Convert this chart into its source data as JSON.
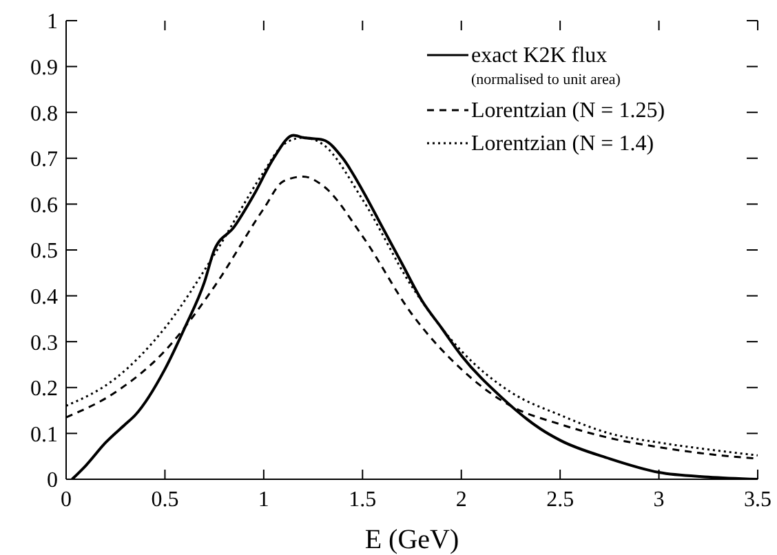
{
  "chart_data": {
    "type": "line",
    "xlabel": "E (GeV)",
    "annotations": [
      "(normalised to unit area)"
    ],
    "xlim": [
      0,
      3.5
    ],
    "ylim": [
      0,
      1
    ],
    "xticks": [
      0,
      0.5,
      1,
      1.5,
      2,
      2.5,
      3,
      3.5
    ],
    "yticks": [
      0,
      0.1,
      0.2,
      0.3,
      0.4,
      0.5,
      0.6,
      0.7,
      0.8,
      0.9,
      1
    ],
    "grid": false,
    "legend": "top right",
    "marker": "none",
    "series": [
      {
        "name": "exact K2K flux",
        "color": "#000000",
        "line_style": "solid",
        "x": [
          0.03,
          0.1,
          0.2,
          0.3,
          0.35,
          0.5,
          0.6,
          0.7,
          0.75,
          0.85,
          0.95,
          1.05,
          1.15,
          1.2,
          1.3,
          1.4,
          1.5,
          1.6,
          1.7,
          1.8,
          1.9,
          2.0,
          2.2,
          2.4,
          2.5,
          2.75,
          3.0,
          3.25,
          3.5
        ],
        "values": [
          0,
          0.03,
          0.08,
          0.12,
          0.14,
          0.24,
          0.33,
          0.43,
          0.5,
          0.55,
          0.62,
          0.7,
          0.75,
          0.745,
          0.74,
          0.7,
          0.63,
          0.55,
          0.47,
          0.39,
          0.33,
          0.27,
          0.18,
          0.11,
          0.085,
          0.045,
          0.015,
          0.005,
          0
        ]
      },
      {
        "name": "Lorentzian (N = 1.25)",
        "color": "#000000",
        "line_style": "dashed",
        "x": [
          0,
          0.25,
          0.5,
          0.75,
          1.0,
          1.1,
          1.2,
          1.3,
          1.5,
          1.75,
          2.0,
          2.25,
          2.5,
          2.75,
          3.0,
          3.25,
          3.5
        ],
        "values": [
          0.135,
          0.19,
          0.28,
          0.42,
          0.59,
          0.65,
          0.66,
          0.64,
          0.53,
          0.36,
          0.24,
          0.16,
          0.12,
          0.09,
          0.07,
          0.055,
          0.045
        ]
      },
      {
        "name": "Lorentzian (N = 1.4)",
        "color": "#000000",
        "line_style": "dotted",
        "x": [
          0,
          0.25,
          0.5,
          0.75,
          1.0,
          1.1,
          1.2,
          1.3,
          1.5,
          1.75,
          2.0,
          2.25,
          2.5,
          2.75,
          3.0,
          3.25,
          3.5
        ],
        "values": [
          0.16,
          0.22,
          0.33,
          0.49,
          0.67,
          0.73,
          0.745,
          0.73,
          0.61,
          0.42,
          0.28,
          0.19,
          0.14,
          0.1,
          0.08,
          0.065,
          0.052
        ]
      }
    ]
  }
}
